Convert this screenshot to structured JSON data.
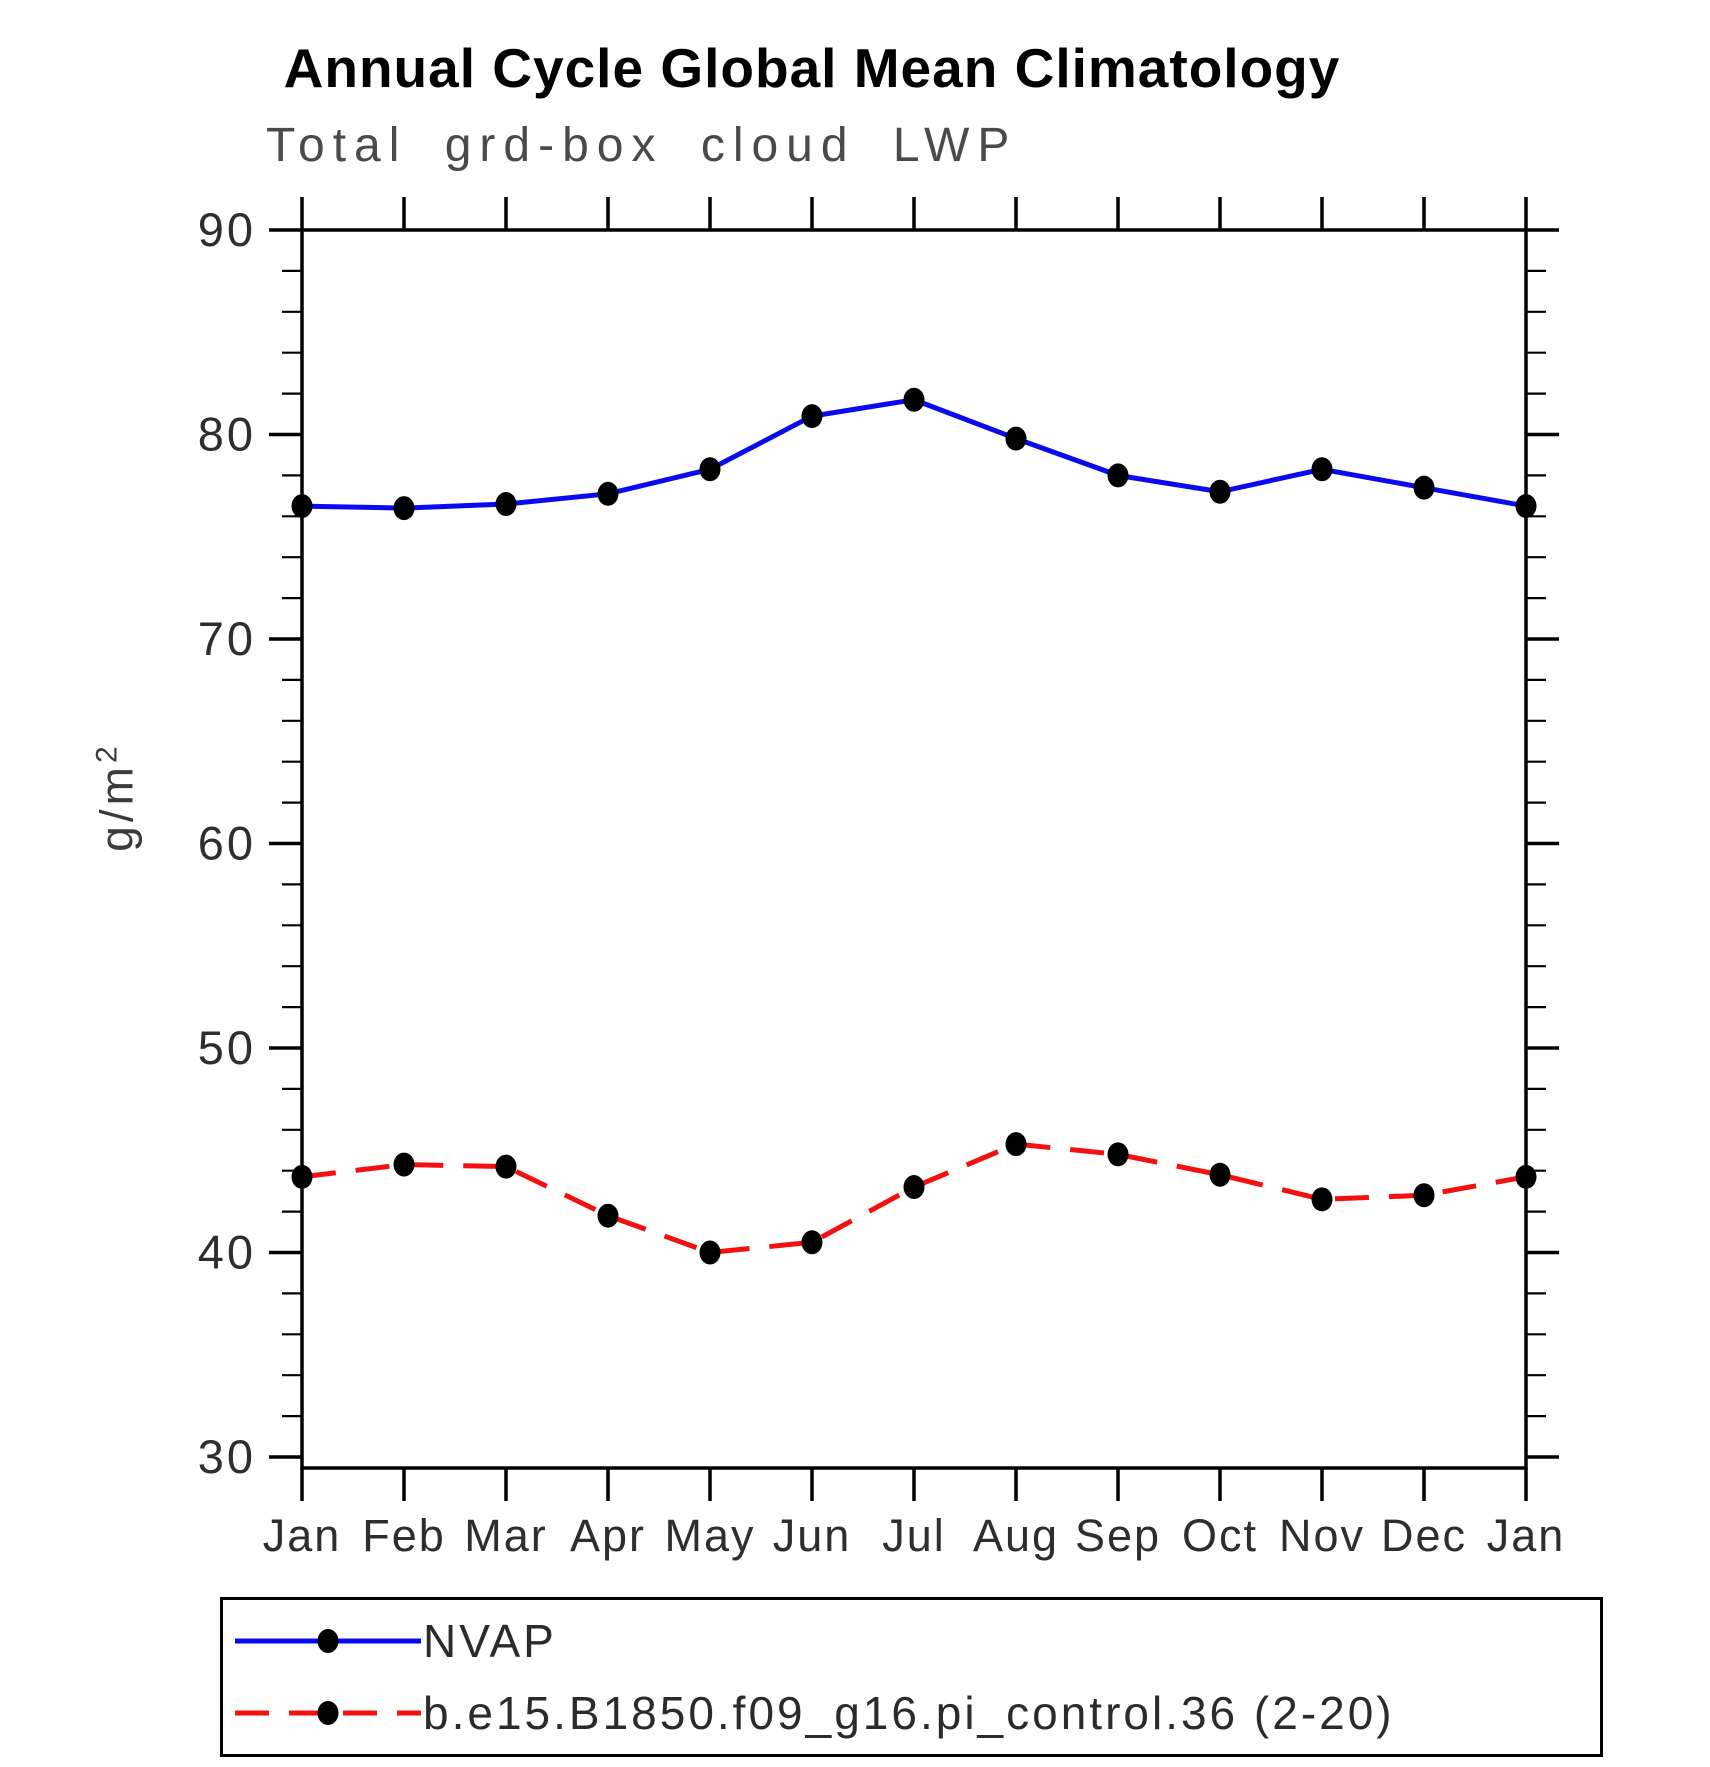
{
  "chart_data": {
    "type": "line",
    "title": "Annual Cycle Global Mean Climatology",
    "subtitle": "Total grd-box cloud LWP",
    "ylabel_base": "g/m",
    "ylabel_exp": "2",
    "categories": [
      "Jan",
      "Feb",
      "Mar",
      "Apr",
      "May",
      "Jun",
      "Jul",
      "Aug",
      "Sep",
      "Oct",
      "Nov",
      "Dec",
      "Jan"
    ],
    "series": [
      {
        "name": "NVAP",
        "color": "#0a0af0",
        "style": "solid",
        "marker": "circle",
        "marker_color": "#000000",
        "values": [
          76.5,
          76.4,
          76.6,
          77.1,
          78.3,
          80.9,
          81.7,
          79.8,
          78.0,
          77.2,
          78.3,
          77.4,
          76.5
        ]
      },
      {
        "name": "b.e15.B1850.f09_g16.pi_control.36 (2-20)",
        "color": "#f50f0f",
        "style": "dashed",
        "marker": "circle",
        "marker_color": "#000000",
        "values": [
          43.7,
          44.3,
          44.2,
          41.8,
          40.0,
          40.5,
          43.2,
          45.3,
          44.8,
          43.8,
          42.6,
          42.8,
          43.7
        ]
      }
    ],
    "ylim": [
      30,
      90
    ],
    "yticks_major": [
      30,
      40,
      50,
      60,
      70,
      80,
      90
    ],
    "ytick_minor_step": 2,
    "grid": false,
    "legend_position": "bottom-left-box",
    "axis_color": "#000000"
  }
}
